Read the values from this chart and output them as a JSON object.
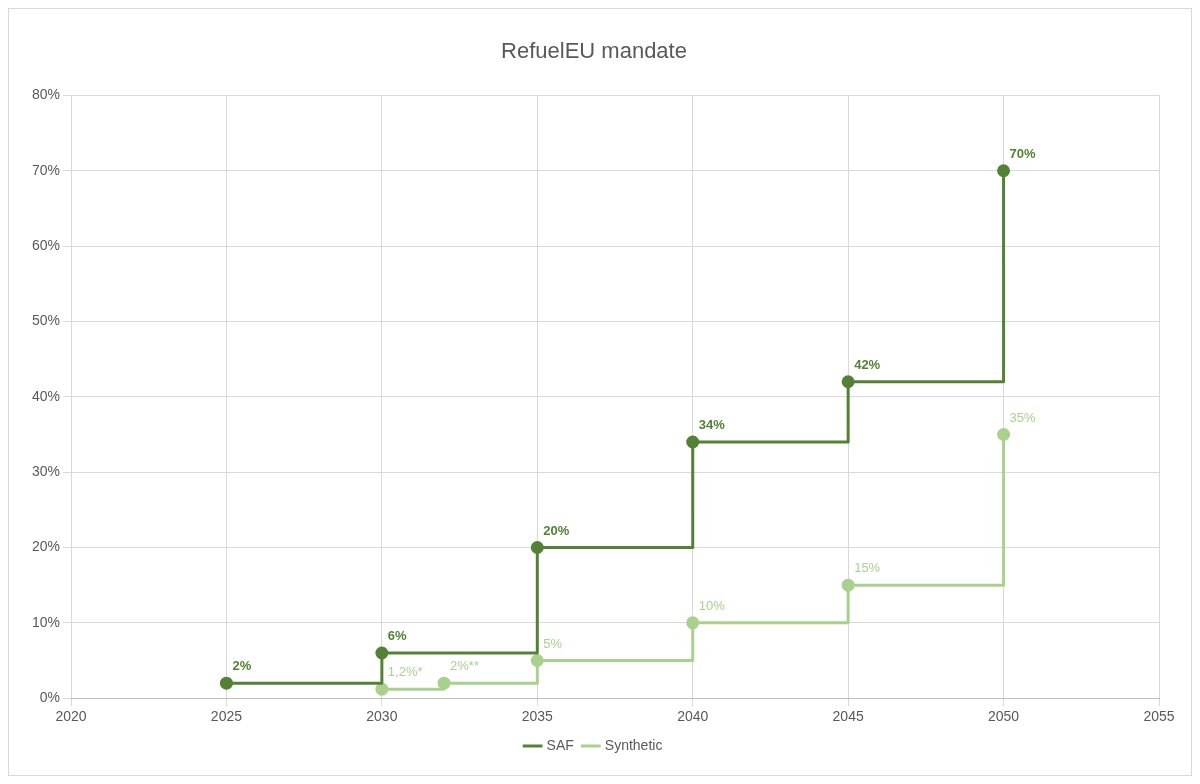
{
  "chart_data": {
    "type": "step",
    "title": "RefuelEU mandate",
    "xlim": [
      2020,
      2055
    ],
    "xticks": [
      2020,
      2025,
      2030,
      2035,
      2040,
      2045,
      2050,
      2055
    ],
    "ylim": [
      0,
      80
    ],
    "yticks": [
      {
        "value": 0,
        "label": "0%"
      },
      {
        "value": 10,
        "label": "10%"
      },
      {
        "value": 20,
        "label": "20%"
      },
      {
        "value": 30,
        "label": "30%"
      },
      {
        "value": 40,
        "label": "40%"
      },
      {
        "value": 50,
        "label": "50%"
      },
      {
        "value": 60,
        "label": "60%"
      },
      {
        "value": 70,
        "label": "70%"
      },
      {
        "value": 80,
        "label": "80%"
      }
    ],
    "grid": true,
    "legend": "bottom",
    "marker": "circle",
    "line_style": "solid",
    "series": [
      {
        "name": "SAF",
        "color": "#548235",
        "x": [
          2025,
          2030,
          2035,
          2040,
          2045,
          2050
        ],
        "values": [
          2,
          6,
          20,
          34,
          42,
          70
        ],
        "value_labels": [
          "2%",
          "6%",
          "20%",
          "34%",
          "42%",
          "70%"
        ]
      },
      {
        "name": "Synthetic",
        "color": "#a9d18e",
        "x": [
          2030,
          2032,
          2035,
          2040,
          2045,
          2050
        ],
        "values": [
          1.2,
          2,
          5,
          10,
          15,
          35
        ],
        "value_labels": [
          "1,2%*",
          "2%**",
          "5%",
          "10%",
          "15%",
          "35%"
        ]
      }
    ]
  }
}
